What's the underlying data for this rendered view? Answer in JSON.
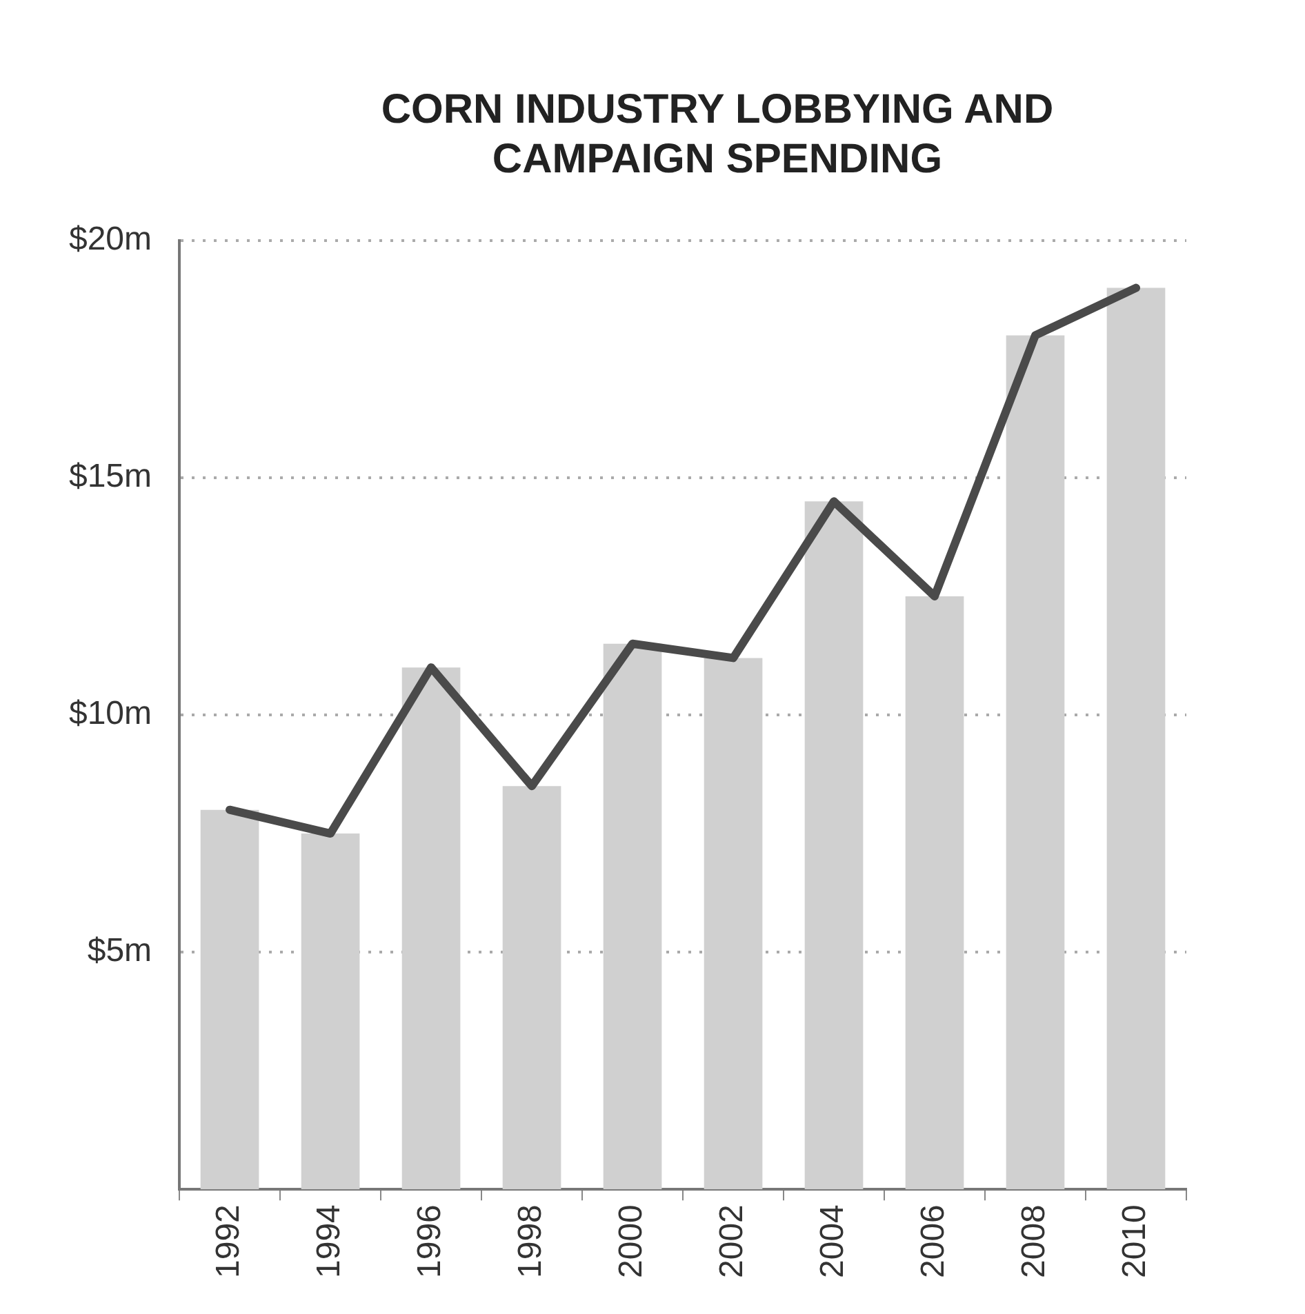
{
  "chart_data": {
    "type": "bar",
    "title": "CORN INDUSTRY LOBBYING AND CAMPAIGN SPENDING",
    "categories": [
      "1992",
      "1994",
      "1996",
      "1998",
      "2000",
      "2002",
      "2004",
      "2006",
      "2008",
      "2010"
    ],
    "series": [
      {
        "color": "#d0d0d0",
        "values": [
          8,
          7.5,
          11,
          8.5,
          11.5,
          11.2,
          14.5,
          12.5,
          18,
          19
        ]
      },
      {
        "type": "line",
        "color": "#4a4a4a",
        "values": [
          8,
          7.5,
          11,
          8.5,
          11.5,
          11.2,
          14.5,
          12.5,
          18,
          19
        ]
      }
    ],
    "ylim": [
      0,
      20
    ],
    "yticks": [
      {
        "value": 5,
        "label": "$5m"
      },
      {
        "value": 10,
        "label": "$10m"
      },
      {
        "value": 15,
        "label": "$15m"
      },
      {
        "value": 20,
        "label": "$20m"
      }
    ],
    "grid": "y",
    "legend": false,
    "marker": "none",
    "line_style": "solid"
  }
}
